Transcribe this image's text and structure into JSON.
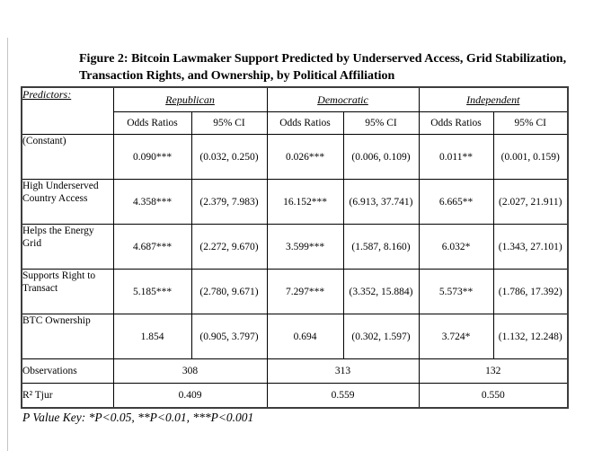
{
  "title": {
    "line1": "Figure 2: Bitcoin Lawmaker Support Predicted by Underserved Access, Grid Stabilization,",
    "line2": "Transaction Rights, and Ownership, by Political Affiliation"
  },
  "table": {
    "predictors_label": "Predictors:",
    "groups": [
      {
        "label": "Republican"
      },
      {
        "label": "Democratic"
      },
      {
        "label": "Independent"
      }
    ],
    "subheaders": [
      "Odds Ratios",
      "95% CI"
    ],
    "rows": [
      {
        "label": "(Constant)",
        "cells": [
          "0.090***",
          "(0.032, 0.250)",
          "0.026***",
          "(0.006, 0.109)",
          "0.011**",
          "(0.001, 0.159)"
        ]
      },
      {
        "label": "High Underserved Country Access",
        "cells": [
          "4.358***",
          "(2.379, 7.983)",
          "16.152***",
          "(6.913, 37.741)",
          "6.665**",
          "(2.027, 21.911)"
        ]
      },
      {
        "label": "Helps the Energy Grid",
        "cells": [
          "4.687***",
          "(2.272, 9.670)",
          "3.599***",
          "(1.587, 8.160)",
          "6.032*",
          "(1.343, 27.101)"
        ]
      },
      {
        "label": "Supports Right to Transact",
        "cells": [
          "5.185***",
          "(2.780, 9.671)",
          "7.297***",
          "(3.352, 15.884)",
          "5.573**",
          "(1.786, 17.392)"
        ]
      },
      {
        "label": "BTC Ownership",
        "cells": [
          "1.854",
          "(0.905, 3.797)",
          "0.694",
          "(0.302, 1.597)",
          "3.724*",
          "(1.132, 12.248)"
        ]
      }
    ],
    "summary_rows": [
      {
        "label": "Observations",
        "values": [
          "308",
          "313",
          "132"
        ]
      },
      {
        "label": "R² Tjur",
        "values": [
          "0.409",
          "0.559",
          "0.550"
        ]
      }
    ]
  },
  "footer": {
    "p_value_key": "P Value Key: *P<0.05, **P<0.01, ***P<0.001"
  }
}
